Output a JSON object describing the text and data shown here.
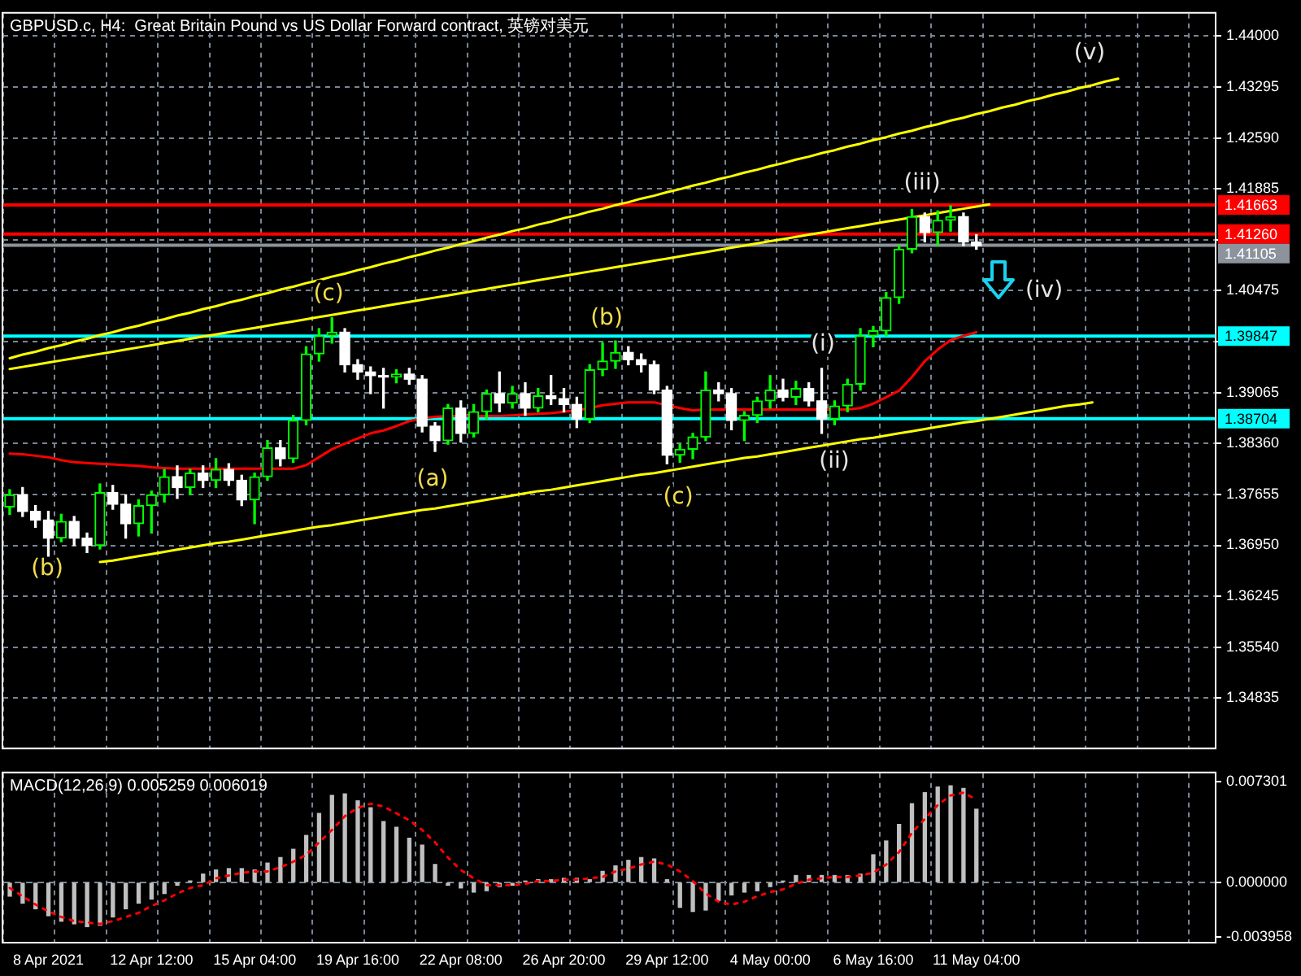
{
  "chart_data": [
    {
      "type": "candlestick",
      "title": "GBPUSD.c, H4:  Great Britain Pound vs US Dollar Forward contract, 英镑对美元",
      "categories": [
        null,
        null,
        null,
        null,
        null,
        null,
        null,
        null,
        null,
        null,
        null,
        null,
        null,
        null,
        null,
        null,
        null,
        null,
        null,
        null,
        null,
        null,
        null,
        null,
        null,
        null,
        null,
        null,
        null,
        null,
        null,
        null,
        null,
        null,
        null,
        null,
        null,
        null,
        null,
        null,
        null,
        null,
        null,
        null,
        null,
        null,
        null,
        null,
        null,
        null,
        null,
        null,
        null,
        null,
        null,
        null,
        null,
        null,
        null,
        null,
        null,
        null,
        null,
        null,
        null,
        null,
        null,
        null,
        null,
        null,
        null,
        null,
        null,
        null,
        null,
        null,
        null,
        null,
        null,
        null,
        null,
        null,
        null,
        null,
        null,
        null,
        null,
        null,
        null,
        null,
        null,
        null,
        null,
        null
      ],
      "colors": [
        "#00ff00",
        "#ffffff",
        "#ffffff",
        "#ffffff",
        "#00ff00",
        "#ffffff",
        "#ffffff",
        "#00ff00",
        "#ffffff",
        "#ffffff",
        "#00ff00",
        "#00ff00",
        "#00ff00",
        "#ffffff",
        "#00ff00",
        "#ffffff",
        "#00ff00",
        "#ffffff",
        "#ffffff",
        "#00ff00",
        "#00ff00",
        "#ffffff",
        "#00ff00",
        "#00ff00",
        "#00ff00",
        "#00ff00",
        "#ffffff",
        "#ffffff",
        "#ffffff",
        "#ffffff",
        "#00ff00",
        "#ffffff",
        "#ffffff",
        "#ffffff",
        "#00ff00",
        "#ffffff",
        "#00ff00",
        "#00ff00",
        "#ffffff",
        "#00ff00",
        "#ffffff",
        "#00ff00",
        "#ffffff",
        "#ffffff",
        "#ffffff",
        "#00ff00",
        "#00ff00",
        "#00ff00",
        "#ffffff",
        "#ffffff",
        "#ffffff",
        "#ffffff",
        "#00ff00",
        "#00ff00",
        "#00ff00",
        "#ffffff",
        "#ffffff",
        "#00ff00",
        "#00ff00",
        "#00ff00",
        "#ffffff",
        "#00ff00",
        "#ffffff",
        "#ffffff",
        "#00ff00",
        "#00ff00",
        "#00ff00",
        "#00ff00",
        "#00ff00",
        "#00ff00",
        "#00ff00",
        "#ffffff",
        "#00ff00",
        "#00ff00",
        "#ffffff",
        "#ffffff",
        null,
        null,
        null,
        null,
        null,
        null,
        null,
        null,
        null,
        null,
        null,
        null,
        null,
        null,
        null,
        null,
        null,
        null
      ],
      "ohlc": [
        [
          1.3748,
          1.3772,
          1.3738,
          1.3765
        ],
        [
          1.3765,
          1.3775,
          1.3735,
          1.3742
        ],
        [
          1.3742,
          1.375,
          1.372,
          1.373
        ],
        [
          1.373,
          1.3742,
          1.368,
          1.3705
        ],
        [
          1.3705,
          1.3738,
          1.37,
          1.3728
        ],
        [
          1.3728,
          1.3735,
          1.3695,
          1.3705
        ],
        [
          1.3705,
          1.3712,
          1.3685,
          1.3695
        ],
        [
          1.3695,
          1.378,
          1.369,
          1.3768
        ],
        [
          1.3768,
          1.3778,
          1.3745,
          1.3752
        ],
        [
          1.3752,
          1.3765,
          1.3705,
          1.3725
        ],
        [
          1.3725,
          1.3758,
          1.3708,
          1.375
        ],
        [
          1.375,
          1.377,
          1.3712,
          1.3765
        ],
        [
          1.3765,
          1.38,
          1.3755,
          1.379
        ],
        [
          1.379,
          1.3805,
          1.376,
          1.3775
        ],
        [
          1.3775,
          1.38,
          1.3765,
          1.3795
        ],
        [
          1.3795,
          1.3805,
          1.3775,
          1.3785
        ],
        [
          1.3785,
          1.3815,
          1.3775,
          1.38
        ],
        [
          1.38,
          1.3808,
          1.3778,
          1.3785
        ],
        [
          1.3785,
          1.3792,
          1.375,
          1.3758
        ],
        [
          1.3758,
          1.3795,
          1.3725,
          1.379
        ],
        [
          1.379,
          1.384,
          1.3785,
          1.383
        ],
        [
          1.383,
          1.384,
          1.3805,
          1.3815
        ],
        [
          1.3815,
          1.3875,
          1.381,
          1.3868
        ],
        [
          1.3868,
          1.397,
          1.3862,
          1.396
        ],
        [
          1.396,
          1.3995,
          1.395,
          1.3985
        ],
        [
          1.3985,
          1.401,
          1.3975,
          1.399
        ],
        [
          1.399,
          1.3995,
          1.3935,
          1.3945
        ],
        [
          1.3945,
          1.3952,
          1.3925,
          1.3935
        ],
        [
          1.3935,
          1.3942,
          1.3905,
          1.393
        ],
        [
          1.393,
          1.394,
          1.3885,
          1.3928
        ],
        [
          1.3928,
          1.3938,
          1.392,
          1.3932
        ],
        [
          1.3932,
          1.394,
          1.3918,
          1.3925
        ],
        [
          1.3925,
          1.393,
          1.3852,
          1.386
        ],
        [
          1.386,
          1.3865,
          1.3825,
          1.384
        ],
        [
          1.384,
          1.389,
          1.3835,
          1.3885
        ],
        [
          1.3885,
          1.3895,
          1.3838,
          1.385
        ],
        [
          1.385,
          1.389,
          1.3845,
          1.388
        ],
        [
          1.388,
          1.391,
          1.387,
          1.3905
        ],
        [
          1.3905,
          1.3935,
          1.388,
          1.3892
        ],
        [
          1.3892,
          1.3915,
          1.3885,
          1.3905
        ],
        [
          1.3905,
          1.392,
          1.3875,
          1.3885
        ],
        [
          1.3885,
          1.3912,
          1.388,
          1.3902
        ],
        [
          1.3902,
          1.393,
          1.389,
          1.3898
        ],
        [
          1.3898,
          1.3912,
          1.388,
          1.389
        ],
        [
          1.389,
          1.39,
          1.3858,
          1.387
        ],
        [
          1.387,
          1.3945,
          1.3865,
          1.3938
        ],
        [
          1.3938,
          1.3975,
          1.393,
          1.395
        ],
        [
          1.395,
          1.3978,
          1.394,
          1.3962
        ],
        [
          1.3962,
          1.397,
          1.3945,
          1.3952
        ],
        [
          1.3952,
          1.396,
          1.3935,
          1.3945
        ],
        [
          1.3945,
          1.395,
          1.3905,
          1.391
        ],
        [
          1.391,
          1.3915,
          1.3808,
          1.382
        ],
        [
          1.382,
          1.3835,
          1.381,
          1.3828
        ],
        [
          1.3828,
          1.385,
          1.3815,
          1.3845
        ],
        [
          1.3845,
          1.3935,
          1.384,
          1.391
        ],
        [
          1.391,
          1.392,
          1.3895,
          1.3905
        ],
        [
          1.3905,
          1.3912,
          1.3855,
          1.3868
        ],
        [
          1.3868,
          1.388,
          1.384,
          1.3875
        ],
        [
          1.3875,
          1.39,
          1.3865,
          1.3895
        ],
        [
          1.3895,
          1.393,
          1.3885,
          1.391
        ],
        [
          1.391,
          1.3925,
          1.3895,
          1.39
        ],
        [
          1.39,
          1.3922,
          1.389,
          1.3912
        ],
        [
          1.3912,
          1.392,
          1.3888,
          1.3895
        ],
        [
          1.3895,
          1.394,
          1.385,
          1.387
        ],
        [
          1.387,
          1.3895,
          1.3862,
          1.3888
        ],
        [
          1.3888,
          1.3925,
          1.388,
          1.3918
        ],
        [
          1.3918,
          1.3995,
          1.391,
          1.3985
        ],
        [
          1.3985,
          1.3998,
          1.397,
          1.3992
        ],
        [
          1.3992,
          1.4045,
          1.3985,
          1.4038
        ],
        [
          1.4038,
          1.411,
          1.403,
          1.4105
        ],
        [
          1.4105,
          1.416,
          1.41,
          1.415
        ],
        [
          1.415,
          1.4155,
          1.4115,
          1.4128
        ],
        [
          1.4128,
          1.4158,
          1.411,
          1.4145
        ],
        [
          1.4145,
          1.4165,
          1.413,
          1.415
        ],
        [
          1.415,
          1.4155,
          1.411,
          1.4115
        ],
        [
          1.4115,
          1.4125,
          1.4105,
          1.411
        ],
        null,
        null,
        null,
        null,
        null,
        null,
        null,
        null,
        null,
        null,
        null,
        null,
        null,
        null,
        null,
        null,
        null,
        null
      ],
      "series": [
        {
          "type": "line",
          "color": "#ff0000",
          "values": [
            1.3822,
            1.3821,
            1.3819,
            1.3817,
            1.3813,
            1.381,
            1.3809,
            1.3808,
            1.3807,
            1.3806,
            1.3805,
            1.3803,
            1.3802,
            1.3801,
            1.3801,
            1.3801,
            1.3801,
            1.3801,
            1.3801,
            1.3801,
            1.3801,
            1.3801,
            1.3801,
            1.3806,
            1.3817,
            1.3828,
            1.3836,
            1.3843,
            1.385,
            1.3854,
            1.386,
            1.3867,
            1.3871,
            1.3873,
            1.3874,
            1.3874,
            1.3874,
            1.3874,
            1.3874,
            1.3875,
            1.3876,
            1.3877,
            1.3878,
            1.388,
            1.3882,
            1.3885,
            1.3889,
            1.3891,
            1.3893,
            1.3893,
            1.3893,
            1.3889,
            1.3885,
            1.3882,
            1.3883,
            1.3883,
            1.3883,
            1.3883,
            1.3883,
            1.3883,
            1.3883,
            1.3883,
            1.3883,
            1.3883,
            1.3883,
            1.3883,
            1.3885,
            1.3891,
            1.39,
            1.3909,
            1.3928,
            1.395,
            1.3966,
            1.3979,
            1.3985,
            1.399,
            null,
            null,
            null,
            null,
            null,
            null,
            null,
            null,
            null,
            null,
            null,
            null,
            null,
            null,
            null,
            null,
            null,
            null
          ]
        },
        {
          "type": "line",
          "color": "#ffff00",
          "values": [
            1.3954,
            1.3959,
            1.3963,
            1.3968,
            1.3972,
            1.3977,
            1.3981,
            1.3986,
            1.399,
            1.3995,
            1.3999,
            1.4004,
            1.4008,
            1.4013,
            1.4017,
            1.4022,
            1.4026,
            1.4031,
            1.4035,
            1.404,
            1.4044,
            1.4049,
            1.4053,
            1.4058,
            1.4062,
            1.4067,
            1.4071,
            1.4076,
            1.408,
            1.4085,
            1.4089,
            1.4094,
            1.4098,
            1.4103,
            1.4107,
            1.4112,
            1.4116,
            1.4121,
            1.4125,
            1.413,
            1.4134,
            1.4139,
            1.4143,
            1.4148,
            1.4152,
            1.4157,
            1.4161,
            1.4166,
            1.417,
            1.4175,
            1.4179,
            1.4184,
            1.4188,
            1.4193,
            1.4197,
            1.4202,
            1.4206,
            1.4211,
            1.4215,
            1.422,
            1.4224,
            1.4229,
            1.4233,
            1.4238,
            1.4242,
            1.4247,
            1.4251,
            1.4256,
            1.426,
            1.4265,
            1.4269,
            1.4274,
            1.4278,
            1.4283,
            1.4287,
            1.4292,
            1.4296,
            1.4301,
            1.4305,
            1.431,
            1.4314,
            1.4319,
            1.4323,
            1.4328,
            1.4332,
            1.4337,
            1.4341,
            null,
            null,
            null,
            null,
            null,
            null,
            null
          ]
        },
        {
          "type": "line",
          "color": "#ffff00",
          "values": [
            1.3939,
            1.3942,
            1.3945,
            1.3948,
            1.3951,
            1.3954,
            1.3957,
            1.396,
            1.3963,
            1.3966,
            1.3969,
            1.3972,
            1.3975,
            1.3978,
            1.3981,
            1.3984,
            1.3987,
            1.399,
            1.3993,
            1.3996,
            1.3999,
            1.4002,
            1.4005,
            1.4008,
            1.4011,
            1.4014,
            1.4017,
            1.402,
            1.4023,
            1.4026,
            1.4029,
            1.4032,
            1.4035,
            1.4038,
            1.4041,
            1.4044,
            1.4047,
            1.405,
            1.4053,
            1.4056,
            1.4059,
            1.4062,
            1.4065,
            1.4068,
            1.4071,
            1.4074,
            1.4077,
            1.408,
            1.4083,
            1.4086,
            1.4089,
            1.4092,
            1.4095,
            1.4098,
            1.4101,
            1.4104,
            1.4107,
            1.411,
            1.4113,
            1.4116,
            1.4119,
            1.4122,
            1.4125,
            1.4128,
            1.4131,
            1.4134,
            1.4137,
            1.414,
            1.4143,
            1.4146,
            1.4149,
            1.4152,
            1.4155,
            1.4158,
            1.4161,
            1.4164,
            1.4167,
            null,
            null,
            null,
            null,
            null,
            null,
            null,
            null,
            null,
            null,
            null,
            null,
            null,
            null,
            null,
            null,
            null
          ]
        },
        {
          "type": "line",
          "color": "#ffff00",
          "values": [
            null,
            null,
            null,
            null,
            null,
            null,
            null,
            1.3672,
            1.3674,
            1.3677,
            1.368,
            1.3683,
            1.3686,
            1.3689,
            1.3692,
            1.3695,
            1.3698,
            1.37,
            1.3703,
            1.3706,
            1.3709,
            1.3712,
            1.3715,
            1.3718,
            1.3721,
            1.3723,
            1.3726,
            1.3729,
            1.3732,
            1.3735,
            1.3738,
            1.3741,
            1.3744,
            1.3746,
            1.3749,
            1.3752,
            1.3755,
            1.3758,
            1.3761,
            1.3764,
            1.3767,
            1.377,
            1.3772,
            1.3775,
            1.3778,
            1.3781,
            1.3784,
            1.3787,
            1.379,
            1.3793,
            1.3795,
            1.3798,
            1.3801,
            1.3804,
            1.3807,
            1.381,
            1.3813,
            1.3816,
            1.3818,
            1.3821,
            1.3824,
            1.3827,
            1.383,
            1.3833,
            1.3836,
            1.3839,
            1.3842,
            1.3844,
            1.3847,
            1.385,
            1.3853,
            1.3856,
            1.3859,
            1.3862,
            1.3865,
            1.3867,
            1.387,
            1.3873,
            1.3876,
            1.3879,
            1.3882,
            1.3885,
            1.3888,
            1.389,
            1.3893,
            null,
            null,
            null,
            null,
            null,
            null,
            null,
            null,
            null
          ]
        }
      ],
      "ylim": [
        1.3415,
        1.4431
      ],
      "yticks": [
        {
          "value": 1.44,
          "label": "1.44000"
        },
        1.43295,
        {
          "value": 1.4259,
          "label": "1.42590"
        },
        1.41885,
        {
          "value": 1.4118,
          "label": null
        },
        1.40475,
        {
          "value": 1.3977,
          "label": null
        },
        1.39065,
        {
          "value": 1.3836,
          "label": "1.38360"
        },
        1.37655,
        {
          "value": 1.3695,
          "label": "1.36950"
        },
        1.36245,
        {
          "value": 1.3554,
          "label": "1.35540"
        },
        1.34835
      ],
      "grid": true,
      "tick_labels": "y",
      "ref_lines": [
        {
          "axis": "y",
          "value": 1.41663,
          "label": "1.41663",
          "color": "#ff0000"
        },
        {
          "axis": "y",
          "value": 1.4126,
          "label": "1.41260",
          "color": "#ff0000"
        },
        {
          "axis": "y",
          "value": 1.41105,
          "label": "1.41105",
          "color": "#8c939c"
        },
        {
          "axis": "y",
          "value": 1.39847,
          "label": "1.39847",
          "color": "#00ffff"
        },
        {
          "axis": "y",
          "value": 1.38704,
          "label": "1.38704",
          "color": "#00ffff"
        }
      ],
      "annotations": [
        "(b)",
        "(c)",
        "(a)",
        "(b)",
        "(c)",
        "(i)",
        "(ii)",
        "(iii)",
        "(iv)",
        "(v)"
      ]
    },
    {
      "type": "bar",
      "title": "MACD(12,26,9) 0.005259 0.006019",
      "categories": [
        null,
        null,
        null,
        "8 Apr 2021",
        null,
        null,
        null,
        null,
        null,
        null,
        null,
        "12 Apr 12:00",
        null,
        null,
        null,
        null,
        null,
        null,
        null,
        "15 Apr 04:00",
        null,
        null,
        null,
        null,
        null,
        null,
        null,
        "19 Apr 16:00",
        null,
        null,
        null,
        null,
        null,
        null,
        null,
        "22 Apr 08:00",
        null,
        null,
        null,
        null,
        null,
        null,
        null,
        "26 Apr 20:00",
        null,
        null,
        null,
        null,
        null,
        null,
        null,
        "29 Apr 12:00",
        null,
        null,
        null,
        null,
        null,
        null,
        null,
        "4 May 00:00",
        null,
        null,
        null,
        null,
        null,
        null,
        null,
        "6 May 16:00",
        null,
        null,
        null,
        null,
        null,
        null,
        null,
        "11 May 04:00",
        null,
        null,
        null,
        null,
        null,
        null,
        null,
        null,
        null,
        null,
        null,
        null,
        null,
        null,
        null,
        null,
        null,
        null
      ],
      "series": [
        {
          "color": "#c0c0c0",
          "values": [
            -0.001,
            -0.0015,
            -0.0019,
            -0.0024,
            -0.0028,
            -0.003,
            -0.0032,
            -0.0031,
            -0.0025,
            -0.0019,
            -0.0015,
            -0.0012,
            -0.0008,
            -0.0002,
            0.0001,
            0.0006,
            0.0009,
            0.001,
            0.001,
            0.0009,
            0.0014,
            0.0018,
            0.0024,
            0.0034,
            0.005,
            0.0063,
            0.0064,
            0.0059,
            0.0054,
            0.0044,
            0.004,
            0.0032,
            0.0027,
            0.0013,
            -0.0002,
            -0.0004,
            -0.0007,
            -0.0006,
            -0.0003,
            -0.0002,
            0.0001,
            0.0002,
            0.0002,
            0.0003,
            0.0003,
            0.0002,
            0.0008,
            0.0012,
            0.0016,
            0.0018,
            0.0017,
            0.0002,
            -0.0018,
            -0.0021,
            -0.002,
            -0.0013,
            -0.0009,
            -0.0007,
            -0.0006,
            -0.0003,
            0.0001,
            0.0005,
            0.0005,
            0.0005,
            0.0005,
            0.0005,
            0.0006,
            0.002,
            0.003,
            0.0042,
            0.0057,
            0.0065,
            0.0069,
            0.007,
            0.0068,
            0.0053,
            null,
            null,
            null,
            null,
            null,
            null,
            null,
            null,
            null,
            null,
            null,
            null,
            null,
            null,
            null,
            null,
            null,
            null
          ]
        },
        {
          "type": "line",
          "color": "#ff0000",
          "line_style": "dotted",
          "values": [
            -0.0004,
            -0.001,
            -0.0016,
            -0.0021,
            -0.0025,
            -0.0028,
            -0.0029,
            -0.003,
            -0.0028,
            -0.0025,
            -0.0022,
            -0.0017,
            -0.0013,
            -0.0008,
            -0.0004,
            -0.0002,
            0.0003,
            0.0005,
            0.0007,
            0.0008,
            0.0008,
            0.0011,
            0.0015,
            0.002,
            0.0029,
            0.0038,
            0.0048,
            0.0054,
            0.0057,
            0.0055,
            0.005,
            0.0045,
            0.0038,
            0.0029,
            0.0018,
            0.0009,
            0.0003,
            -0.0002,
            -0.0002,
            -0.0002,
            -0.0001,
            0.0001,
            0.0001,
            0.0002,
            0.0002,
            0.0003,
            0.0004,
            0.0008,
            0.001,
            0.0013,
            0.0015,
            0.0013,
            0.0008,
            0.0001,
            -0.0008,
            -0.0014,
            -0.0016,
            -0.0014,
            -0.001,
            -0.0007,
            -0.0005,
            -0.0001,
            0.0002,
            0.0003,
            0.0004,
            0.0004,
            0.0005,
            0.0007,
            0.0013,
            0.0022,
            0.0036,
            0.0046,
            0.0056,
            0.0063,
            0.0065,
            0.006,
            null,
            null,
            null,
            null,
            null,
            null,
            null,
            null,
            null,
            null,
            null,
            null,
            null,
            null,
            null,
            null,
            null,
            null
          ]
        }
      ],
      "ylim": [
        -0.0043,
        0.0079
      ],
      "yticks": [
        0.007301,
        {
          "value": 0,
          "label": "0.000000"
        },
        -0.003958
      ],
      "grid": "x",
      "ref_lines": [
        {
          "axis": "y",
          "value": 0,
          "color": "#7a8594",
          "line_style": "dashed"
        }
      ]
    }
  ]
}
